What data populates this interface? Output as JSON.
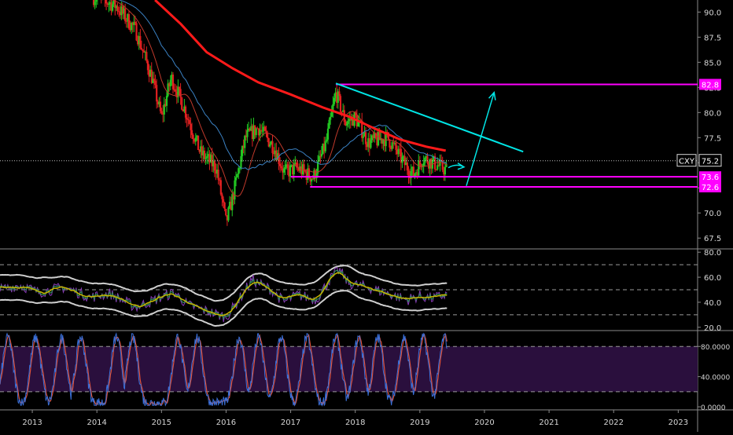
{
  "chart_data": {
    "type": "candlestick",
    "instrument": "CXY",
    "last_price": "75.2",
    "x_axis": {
      "labels": [
        "2013",
        "2014",
        "2015",
        "2016",
        "2017",
        "2018",
        "2019",
        "2020",
        "2021",
        "2022",
        "2023"
      ],
      "range": [
        2012.5,
        2023.3
      ]
    },
    "price_panel": {
      "ylim": [
        66.5,
        91.2
      ],
      "ticks": [
        "90.0",
        "87.5",
        "85.0",
        "82.5",
        "80.0",
        "77.5",
        "75.0",
        "72.5",
        "70.0",
        "67.5"
      ],
      "tick_values": [
        90.0,
        87.5,
        85.0,
        82.5,
        80.0,
        77.5,
        75.0,
        72.5,
        70.0,
        67.5
      ],
      "price_path": [
        [
          2014.0,
          91.5
        ],
        [
          2014.3,
          90.6
        ],
        [
          2014.6,
          88.2
        ],
        [
          2014.85,
          83.5
        ],
        [
          2015.0,
          79.5
        ],
        [
          2015.15,
          83.5
        ],
        [
          2015.35,
          80.5
        ],
        [
          2015.6,
          76.0
        ],
        [
          2015.85,
          74.5
        ],
        [
          2016.0,
          69.0
        ],
        [
          2016.1,
          71.5
        ],
        [
          2016.3,
          77.5
        ],
        [
          2016.5,
          78.5
        ],
        [
          2016.75,
          76.5
        ],
        [
          2016.9,
          74.0
        ],
        [
          2017.1,
          74.5
        ],
        [
          2017.35,
          73.5
        ],
        [
          2017.55,
          77.0
        ],
        [
          2017.7,
          82.0
        ],
        [
          2017.85,
          79.0
        ],
        [
          2018.0,
          79.5
        ],
        [
          2018.2,
          77.0
        ],
        [
          2018.5,
          77.5
        ],
        [
          2018.75,
          75.0
        ],
        [
          2018.9,
          73.8
        ],
        [
          2019.05,
          75.5
        ],
        [
          2019.2,
          75.0
        ],
        [
          2019.4,
          74.3
        ]
      ],
      "ma_red": [
        [
          2014.9,
          91.2
        ],
        [
          2015.3,
          88.8
        ],
        [
          2015.7,
          86.0
        ],
        [
          2016.1,
          84.4
        ],
        [
          2016.5,
          83.0
        ],
        [
          2017.0,
          81.8
        ],
        [
          2017.5,
          80.5
        ],
        [
          2017.9,
          79.6
        ],
        [
          2018.3,
          78.4
        ],
        [
          2018.7,
          77.3
        ],
        [
          2019.1,
          76.6
        ],
        [
          2019.4,
          76.2
        ]
      ],
      "levels": [
        {
          "value": 82.8,
          "label": "82.8",
          "color": "#ff00ff"
        },
        {
          "value": 73.6,
          "label": "73.6",
          "color": "#ff00ff"
        },
        {
          "value": 72.6,
          "label": "72.6",
          "color": "#ff00ff"
        }
      ],
      "trendline": {
        "from": [
          2017.7,
          82.9
        ],
        "to": [
          2020.6,
          76.1
        ],
        "color": "#00e5e5"
      },
      "arrow": {
        "from": [
          2019.72,
          72.7
        ],
        "to": [
          2020.15,
          82.0
        ],
        "color": "#00e5e5"
      }
    },
    "rsi_panel": {
      "ylim": [
        18,
        82
      ],
      "ticks": [
        "80.0",
        "60.0",
        "40.0",
        "20.0"
      ],
      "tick_values": [
        80,
        60,
        40,
        20
      ],
      "dashed_levels": [
        70,
        50,
        30
      ],
      "path": [
        [
          2012.5,
          50
        ],
        [
          2012.8,
          54
        ],
        [
          2013.1,
          48
        ],
        [
          2013.5,
          52
        ],
        [
          2013.9,
          44
        ],
        [
          2014.2,
          47
        ],
        [
          2014.6,
          36
        ],
        [
          2014.9,
          42
        ],
        [
          2015.2,
          48
        ],
        [
          2015.4,
          38
        ],
        [
          2015.7,
          33
        ],
        [
          2016.0,
          28
        ],
        [
          2016.2,
          42
        ],
        [
          2016.4,
          58
        ],
        [
          2016.7,
          50
        ],
        [
          2016.9,
          40
        ],
        [
          2017.1,
          46
        ],
        [
          2017.4,
          42
        ],
        [
          2017.6,
          58
        ],
        [
          2017.75,
          66
        ],
        [
          2017.9,
          55
        ],
        [
          2018.2,
          52
        ],
        [
          2018.5,
          47
        ],
        [
          2018.8,
          42
        ],
        [
          2019.0,
          45
        ],
        [
          2019.2,
          43
        ],
        [
          2019.4,
          46
        ]
      ],
      "color": "#2e8b57",
      "band_color": "#cfcfcf",
      "signal_color": "#c8b400"
    },
    "stoch_panel": {
      "ylim": [
        -3,
        100
      ],
      "ticks": [
        "80.0000",
        "40.0000",
        "0.0000"
      ],
      "tick_values": [
        80,
        40,
        0
      ],
      "dashed_levels": [
        80,
        20
      ],
      "fill": "#2a0f3d",
      "k_color": "#3a6fd8",
      "d_color": "#e0523a",
      "peaks": [
        2012.62,
        2013.05,
        2013.45,
        2013.75,
        2014.3,
        2014.55,
        2015.25,
        2015.55,
        2016.2,
        2016.5,
        2016.85,
        2017.25,
        2017.7,
        2018.05,
        2018.35,
        2018.75,
        2019.05,
        2019.38
      ]
    }
  }
}
